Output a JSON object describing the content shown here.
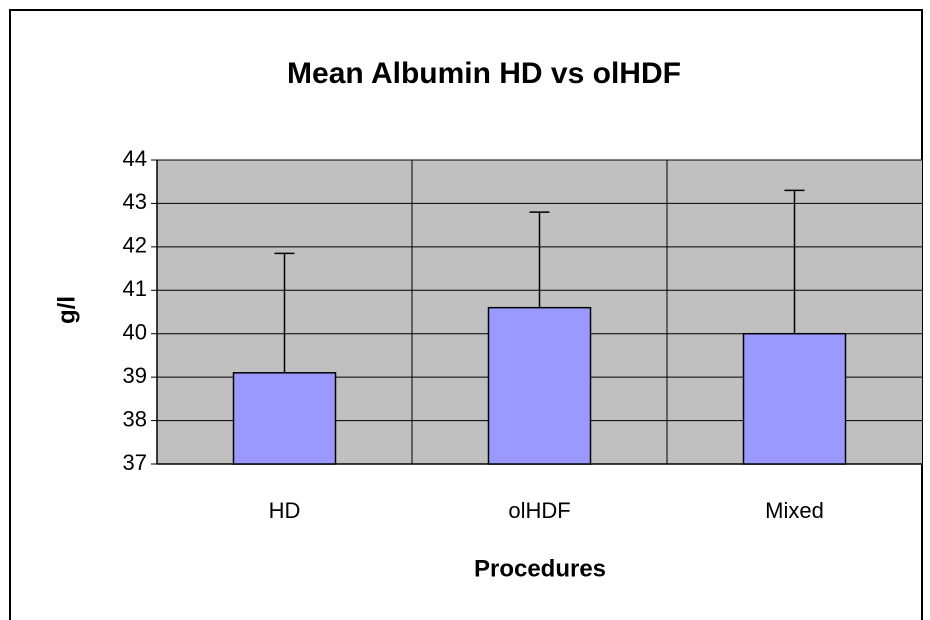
{
  "chart_data": {
    "type": "bar",
    "title": "Mean Albumin HD vs olHDF",
    "x_label": "Procedures",
    "y_label": "g/l",
    "categories": [
      "HD",
      "olHDF",
      "Mixed"
    ],
    "values": [
      39.1,
      40.6,
      40.0
    ],
    "errors": [
      2.75,
      2.2,
      3.3
    ],
    "color": "#9999ff",
    "ylim": [
      37,
      44
    ],
    "yticks": [
      37,
      38,
      39,
      40,
      41,
      42,
      43,
      44
    ],
    "grid": true
  }
}
